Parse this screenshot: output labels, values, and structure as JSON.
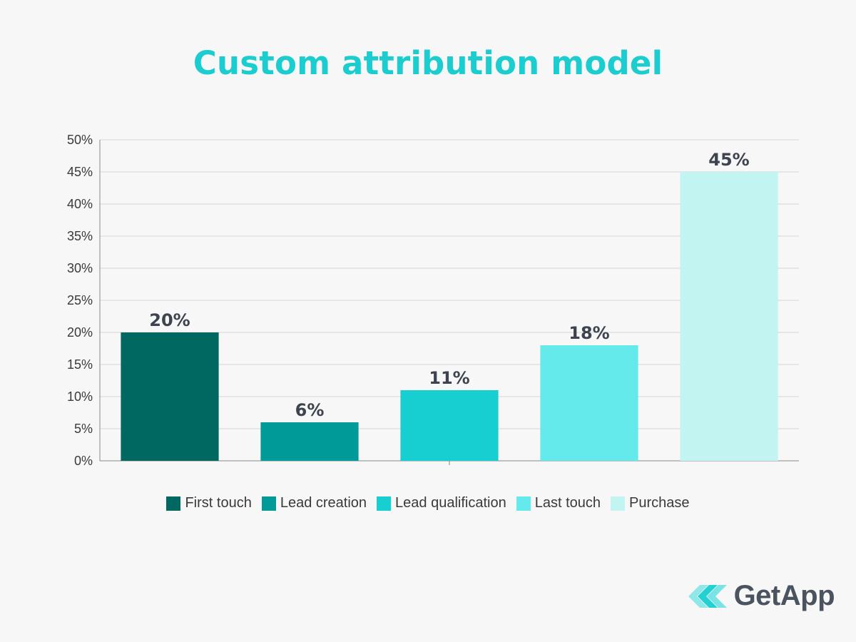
{
  "chart_data": {
    "type": "bar",
    "title": "Custom attribution model",
    "categories": [
      "First touch",
      "Lead creation",
      "Lead qualification",
      "Last touch",
      "Purchase"
    ],
    "values": [
      20,
      6,
      11,
      18,
      45
    ],
    "data_labels": [
      "20%",
      "6%",
      "11%",
      "18%",
      "45%"
    ],
    "colors": [
      "#006861",
      "#009b98",
      "#17cfd1",
      "#64eaea",
      "#c2f4f2"
    ],
    "ylim": [
      0,
      50
    ],
    "yticks": [
      0,
      5,
      10,
      15,
      20,
      25,
      30,
      35,
      40,
      45,
      50
    ],
    "ytick_labels": [
      "0%",
      "5%",
      "10%",
      "15%",
      "20%",
      "25%",
      "30%",
      "35%",
      "40%",
      "45%",
      "50%"
    ],
    "xlabel": "",
    "ylabel": "",
    "grid": true,
    "legend_position": "bottom"
  },
  "branding": {
    "logo_text": "GetApp",
    "logo_icon": "getapp-chevrons-icon"
  }
}
